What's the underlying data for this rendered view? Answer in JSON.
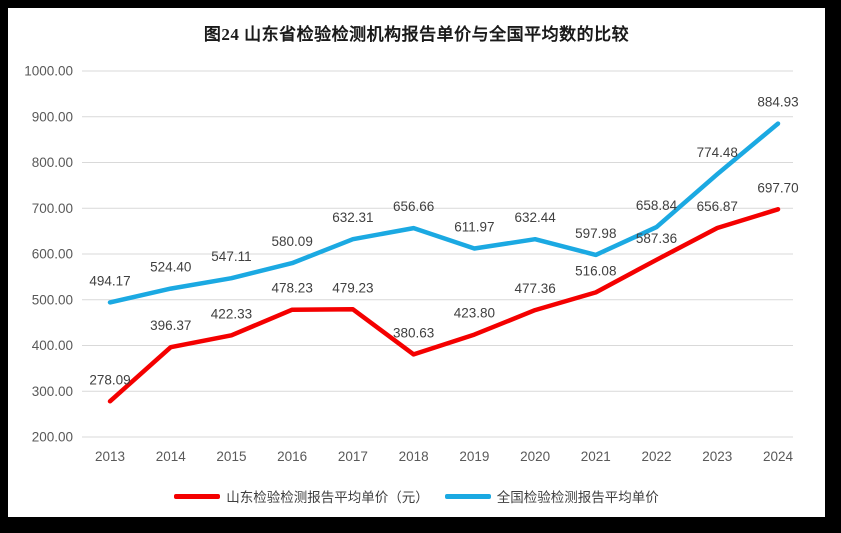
{
  "frame": {
    "border_color": "#000000",
    "background": "#ffffff"
  },
  "chart_data": {
    "type": "line",
    "title": "图24  山东省检验检测机构报告单价与全国平均数的比较",
    "categories": [
      "2013",
      "2014",
      "2015",
      "2016",
      "2017",
      "2018",
      "2019",
      "2020",
      "2021",
      "2022",
      "2023",
      "2024"
    ],
    "series": [
      {
        "name": "山东检验检测报告平均单价（元）",
        "color": "#f40000",
        "values": [
          278.09,
          396.37,
          422.33,
          478.23,
          479.23,
          380.63,
          423.8,
          477.36,
          516.08,
          587.36,
          656.87,
          697.7
        ]
      },
      {
        "name": "全国检验检测报告平均单价",
        "color": "#1ba9e2",
        "values": [
          494.17,
          524.4,
          547.11,
          580.09,
          632.31,
          656.66,
          611.97,
          632.44,
          597.98,
          658.84,
          774.48,
          884.93
        ]
      }
    ],
    "ylim": [
      200,
      1000
    ],
    "ytick_step": 100,
    "ytick_labels": [
      "200.00",
      "300.00",
      "400.00",
      "500.00",
      "600.00",
      "700.00",
      "800.00",
      "900.00",
      "1000.00"
    ],
    "grid": true,
    "gridline_color": "#d9d9d9",
    "axis_label_color": "#595959",
    "data_label_color": "#404040",
    "data_labels": true,
    "label_decimals": 2,
    "legend_position": "bottom"
  }
}
